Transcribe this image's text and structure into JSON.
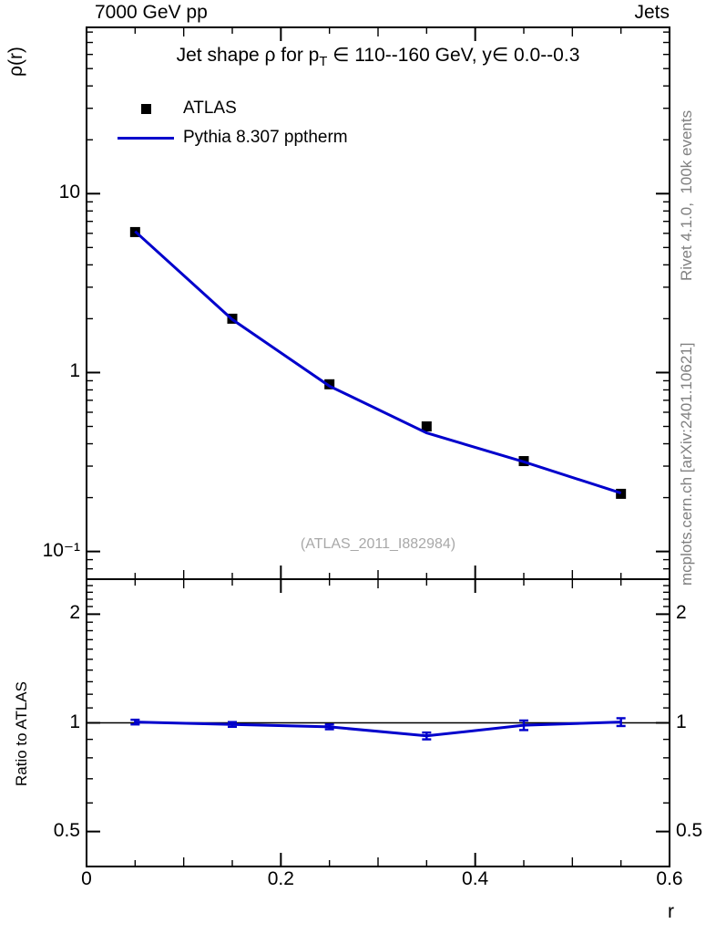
{
  "page": {
    "header_left": "7000 GeV pp",
    "header_right": "Jets",
    "side_top_right": "Rivet 4.1.0,  100k events",
    "side_bottom_right": "mcplots.cern.ch [arXiv:2401.10621]",
    "xlabel": "r"
  },
  "main": {
    "ylabel": "ρ(r)",
    "title_pre": "Jet shape ρ for p",
    "title_sub": "T",
    "title_post": " ∈ 110--160 GeV, y∈ 0.0--0.3",
    "watermark": "(ATLAS_2011_I882984)",
    "legend": [
      {
        "label": "ATLAS",
        "style": "marker",
        "color": "#000000"
      },
      {
        "label": "Pythia 8.307 pptherm",
        "style": "line",
        "color": "#0000cc"
      }
    ]
  },
  "ratio": {
    "ylabel": "Ratio to ATLAS"
  },
  "chart_data": [
    {
      "type": "line",
      "panel": "main",
      "title": "Jet shape ρ for pT ∈ 110--160 GeV, y ∈ 0.0--0.3",
      "xlabel": "r",
      "ylabel": "ρ(r)",
      "xlim": [
        0,
        0.6
      ],
      "ylog": true,
      "ylim": [
        0.07,
        85
      ],
      "grid": false,
      "legend_position": "top-left",
      "xticks": [
        {
          "v": 0,
          "label": "0"
        },
        {
          "v": 0.2,
          "label": "0.2"
        },
        {
          "v": 0.4,
          "label": "0.4"
        },
        {
          "v": 0.6,
          "label": "0.6"
        }
      ],
      "yticks": [
        {
          "v": 10,
          "label": "10"
        },
        {
          "v": 1,
          "label": "1"
        },
        {
          "v": 0.1,
          "label": "10⁻¹"
        }
      ],
      "x": [
        0.05,
        0.15,
        0.25,
        0.35,
        0.45,
        0.55
      ],
      "series": [
        {
          "name": "ATLAS",
          "kind": "marker",
          "marker": "square",
          "color": "#000000",
          "values": [
            6.1,
            2.0,
            0.86,
            0.5,
            0.32,
            0.21
          ]
        },
        {
          "name": "Pythia 8.307 pptherm",
          "kind": "line",
          "color": "#0000cc",
          "values": [
            6.15,
            1.98,
            0.84,
            0.46,
            0.317,
            0.212
          ]
        }
      ]
    },
    {
      "type": "line",
      "panel": "ratio",
      "ylabel": "Ratio to ATLAS",
      "xlim": [
        0,
        0.6
      ],
      "ylog": true,
      "ylim": [
        0.4,
        2.5
      ],
      "refline": 1,
      "yminor_step": 0.1,
      "yticks_both_sides": true,
      "show_xtick_labels": true,
      "xticks": [
        {
          "v": 0,
          "label": "0"
        },
        {
          "v": 0.2,
          "label": "0.2"
        },
        {
          "v": 0.4,
          "label": "0.4"
        },
        {
          "v": 0.6,
          "label": "0.6"
        }
      ],
      "yticks": [
        {
          "v": 2,
          "label": "2"
        },
        {
          "v": 1,
          "label": "1"
        },
        {
          "v": 0.5,
          "label": "0.5"
        }
      ],
      "x": [
        0.05,
        0.15,
        0.25,
        0.35,
        0.45,
        0.55
      ],
      "series": [
        {
          "name": "Pythia 8.307 pptherm / ATLAS",
          "kind": "line+err",
          "color": "#0000cc",
          "values": [
            1.005,
            0.99,
            0.975,
            0.92,
            0.985,
            1.005
          ],
          "errors": [
            0.015,
            0.015,
            0.015,
            0.02,
            0.03,
            0.025
          ]
        }
      ]
    }
  ]
}
